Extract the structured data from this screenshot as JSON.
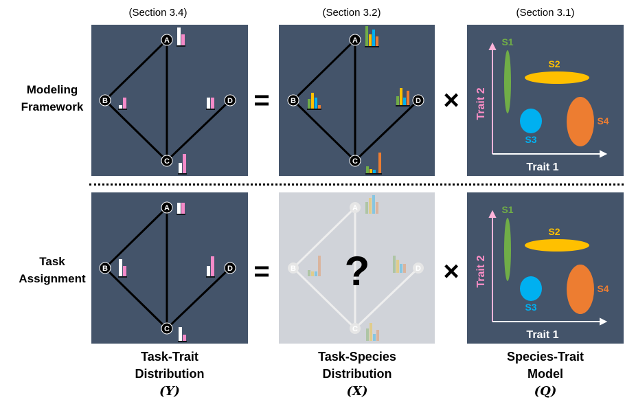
{
  "sections": {
    "y": "(Section 3.4)",
    "x": "(Section 3.2)",
    "q": "(Section 3.1)"
  },
  "rows": {
    "modeling": [
      "Modeling",
      "Framework"
    ],
    "task": [
      "Task",
      "Assignment"
    ]
  },
  "operators": {
    "equals": "=",
    "times": "×",
    "unknown": "?"
  },
  "nodes": {
    "a": "A",
    "b": "B",
    "c": "C",
    "d": "D"
  },
  "traits": {
    "x_axis": "Trait 1",
    "y_axis": "Trait 2"
  },
  "species": {
    "s1": "S1",
    "s2": "S2",
    "s3": "S3",
    "s4": "S4"
  },
  "captions": {
    "y": {
      "line1": "Task-Trait",
      "line2": "Distribution",
      "symbol": "(Y)"
    },
    "x": {
      "line1": "Task-Species",
      "line2": "Distribution",
      "symbol": "(X)"
    },
    "q": {
      "line1": "Species-Trait",
      "line2": "Model",
      "symbol": "(Q)"
    }
  },
  "colors": {
    "panel": "#44546a",
    "panel_faded": "#d0d3d9",
    "trait": "#f58ac8",
    "trait_base": "#ffffff",
    "s1": "#70ad47",
    "s2": "#ffc000",
    "s3": "#00b0f0",
    "s4": "#ed7d31",
    "axis_label": "#ff8fc8"
  }
}
